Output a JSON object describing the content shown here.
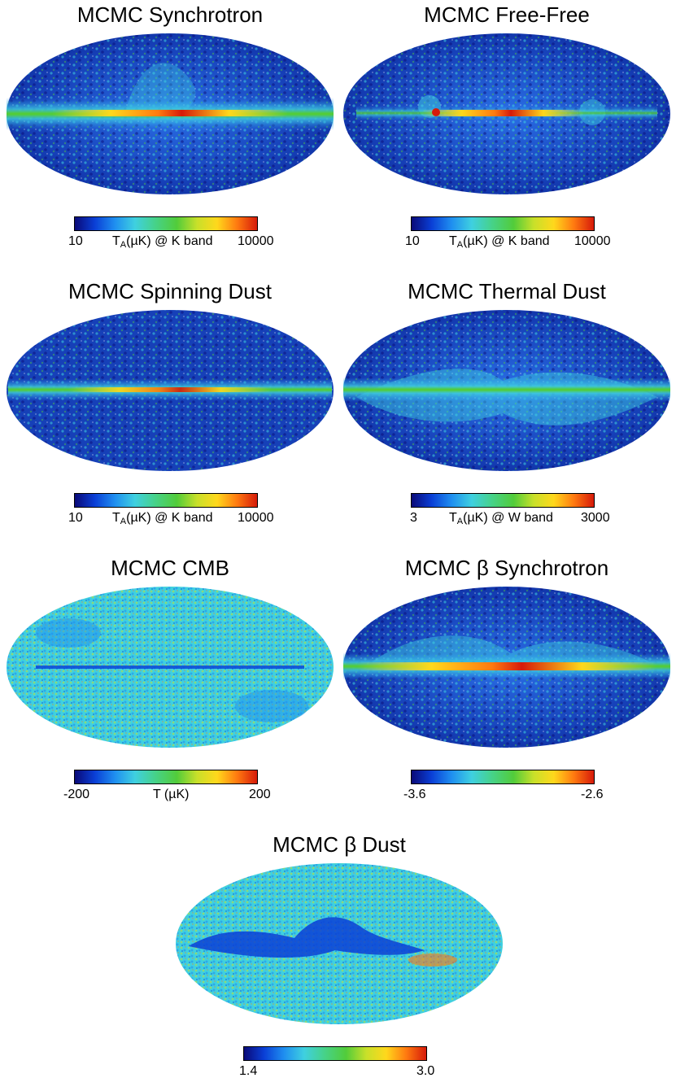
{
  "panels": [
    {
      "title": "MCMC Synchrotron",
      "colorbar": {
        "min_label": "10",
        "unit_main": "T",
        "unit_sub": "A",
        "unit_rest": "(µK) @ K band",
        "max_label": "10000"
      }
    },
    {
      "title": "MCMC Free-Free",
      "colorbar": {
        "min_label": "10",
        "unit_main": "T",
        "unit_sub": "A",
        "unit_rest": "(µK) @ K band",
        "max_label": "10000"
      }
    },
    {
      "title": "MCMC Spinning Dust",
      "colorbar": {
        "min_label": "10",
        "unit_main": "T",
        "unit_sub": "A",
        "unit_rest": "(µK) @ K band",
        "max_label": "10000"
      }
    },
    {
      "title": "MCMC Thermal Dust",
      "colorbar": {
        "min_label": "3",
        "unit_main": "T",
        "unit_sub": "A",
        "unit_rest": "(µK) @ W band",
        "max_label": "3000"
      }
    },
    {
      "title": "MCMC CMB",
      "colorbar": {
        "min_label": "-200",
        "unit_main": "T (µK)",
        "unit_sub": "",
        "unit_rest": "",
        "max_label": "200"
      }
    },
    {
      "title": "MCMC β Synchrotron",
      "colorbar": {
        "min_label": "-3.6",
        "unit_main": "",
        "unit_sub": "",
        "unit_rest": "",
        "max_label": "-2.6"
      }
    },
    {
      "title": "MCMC β Dust",
      "colorbar": {
        "min_label": "1.4",
        "unit_main": "",
        "unit_sub": "",
        "unit_rest": "",
        "max_label": "3.0"
      }
    }
  ],
  "colorscale": [
    "#0a0a78",
    "#0a3fd6",
    "#1f8ff0",
    "#3fd0e0",
    "#46d28a",
    "#52cc3a",
    "#c8e02a",
    "#ffd81c",
    "#ff7a10",
    "#d61a0a"
  ]
}
